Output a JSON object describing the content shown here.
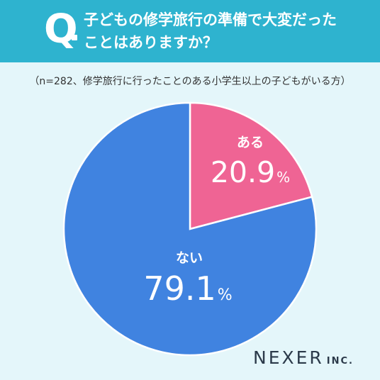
{
  "question": {
    "mark": "Q",
    "line1": "子どもの修学旅行の準備で大変だった",
    "line2": "ことはありますか？"
  },
  "subtitle": "（n=282、修学旅行に行ったことのある小学生以上の子どもがいる方）",
  "logo": {
    "main": "NEXER",
    "suffix": "INC."
  },
  "colors": {
    "header": "#2eb3cf",
    "background": "#e4f6fa",
    "aru": "#ef6494",
    "nai": "#4083e0"
  },
  "chart_data": {
    "type": "pie",
    "title": "",
    "slices": [
      {
        "label": "ある",
        "value": 20.9,
        "display": "20.9",
        "unit": "%",
        "color": "#ef6494"
      },
      {
        "label": "ない",
        "value": 79.1,
        "display": "79.1",
        "unit": "%",
        "color": "#4083e0"
      }
    ],
    "start": "12 o'clock, clockwise"
  }
}
